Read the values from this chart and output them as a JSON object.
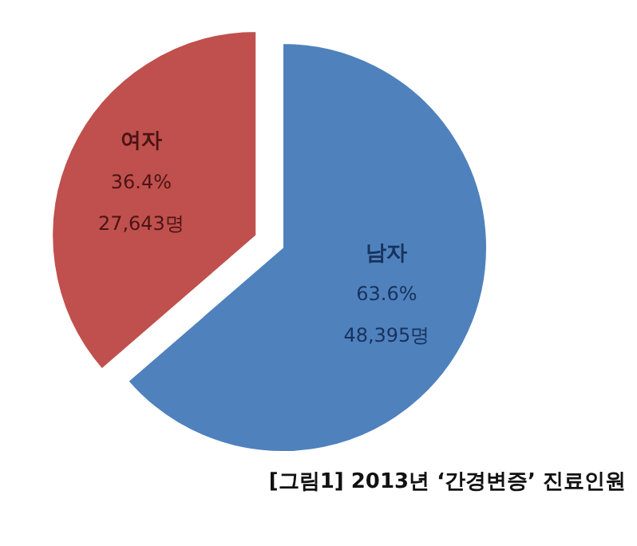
{
  "chart_data": {
    "type": "pie",
    "title": "[그림1] 2013년 ‘간경변증’ 진료인원",
    "categories": [
      "여자",
      "남자"
    ],
    "values": [
      27643,
      48395
    ],
    "colors": [
      "#c0504d",
      "#4f81bd"
    ],
    "value_labels": [
      "36.4%\n27,643명",
      "63.6%\n48,395명"
    ]
  }
}
